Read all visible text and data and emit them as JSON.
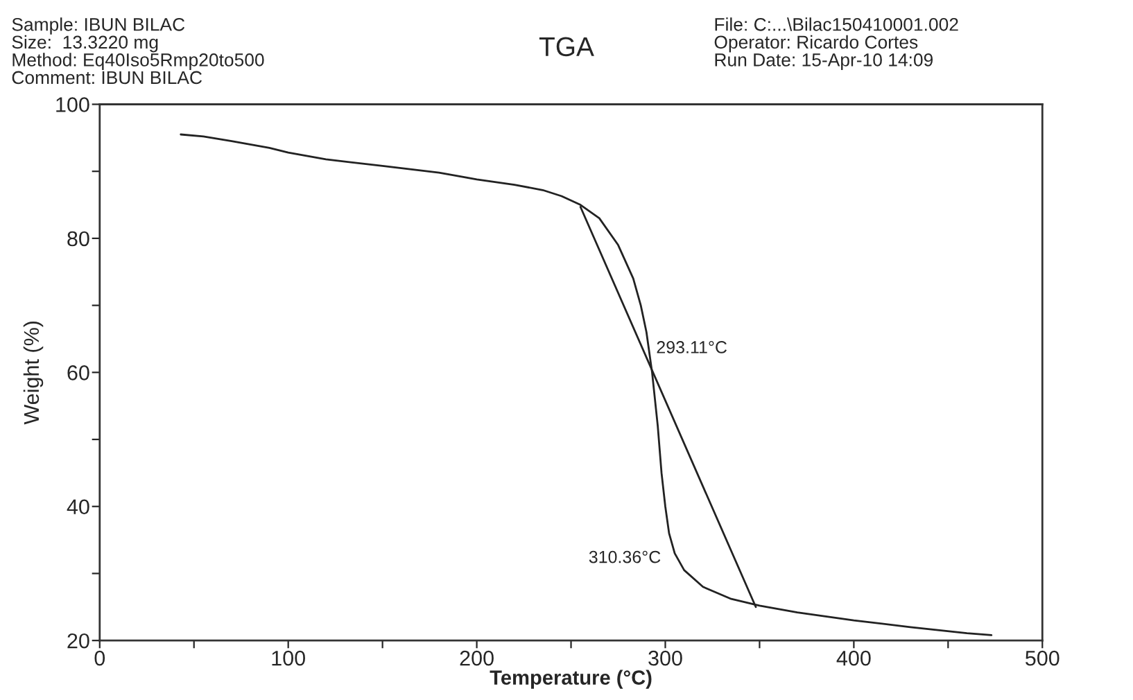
{
  "chart_data": {
    "type": "line",
    "title": "TGA",
    "xlabel": "Temperature (°C)",
    "ylabel": "Weight (%)",
    "annotations": [
      "Sample: IBUN BILAC\nSize:  13.3220 mg\nMethod: Eq40Iso5Rmp20to500\nComment: IBUN BILAC",
      "File: C:...\\Bilac150410001.002\nOperator: Ricardo Cortes\nRun Date: 15-Apr-10 14:09",
      {
        "text": "293.11°C",
        "x": 293.11,
        "y": 60
      },
      {
        "text": "310.36°C",
        "x": 310.36,
        "y": 31
      }
    ],
    "series": [
      {
        "color": "#222222",
        "x": [
          43,
          55,
          70,
          90,
          100,
          120,
          150,
          180,
          200,
          220,
          235,
          245,
          255,
          265,
          275,
          283,
          287,
          290,
          293,
          296,
          298,
          300,
          302,
          305,
          310,
          320,
          335,
          350,
          370,
          400,
          430,
          460,
          473
        ],
        "values": [
          95.5,
          95.2,
          94.5,
          93.5,
          92.8,
          91.8,
          90.8,
          89.8,
          88.8,
          88,
          87.2,
          86.3,
          85,
          83,
          79,
          74,
          70,
          66,
          60,
          52,
          45,
          40,
          36,
          33,
          30.5,
          28,
          26.2,
          25.2,
          24.2,
          23,
          22,
          21.1,
          20.8
        ]
      },
      {
        "type": "line",
        "color": "#222222",
        "x": [
          255,
          348
        ],
        "values": [
          84.7,
          25
        ]
      }
    ],
    "xlim": [
      0,
      500
    ],
    "ylim": [
      20,
      100
    ],
    "xticks": [
      0,
      {
        "value": 50,
        "label": null
      },
      100,
      {
        "value": 150,
        "label": null
      },
      200,
      {
        "value": 250,
        "label": null
      },
      300,
      {
        "value": 350,
        "label": null
      },
      400,
      {
        "value": 450,
        "label": null
      },
      500
    ],
    "yticks": [
      20,
      {
        "value": 30,
        "label": null
      },
      40,
      {
        "value": 50,
        "label": null
      },
      60,
      {
        "value": 70,
        "label": null
      },
      80,
      {
        "value": 90,
        "label": null
      },
      100
    ],
    "grid": false,
    "marker": "none",
    "line_style": "solid"
  }
}
